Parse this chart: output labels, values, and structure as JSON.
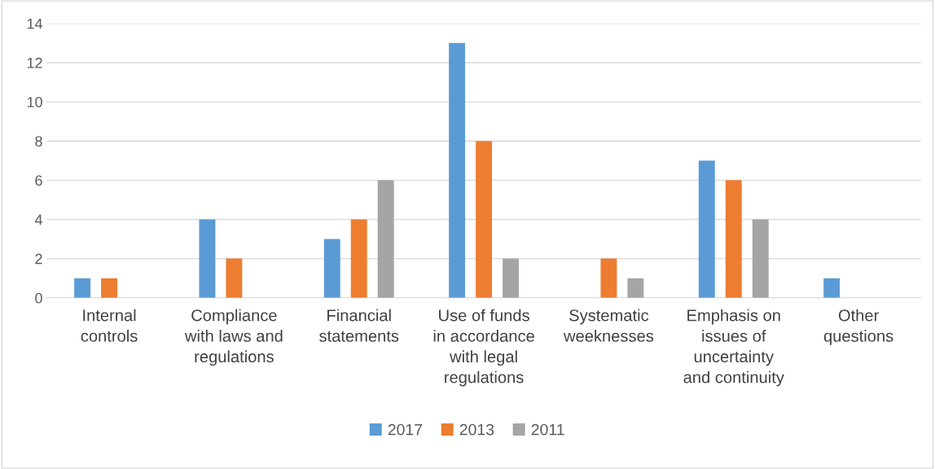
{
  "chart_data": {
    "type": "bar",
    "categories": [
      "Internal controls",
      "Compliance with laws and regulations",
      "Financial statements",
      "Use of funds in accordance with legal regulations",
      "Systematic weeknesses",
      "Emphasis on issues of uncertainty and continuity",
      "Other questions"
    ],
    "series": [
      {
        "name": "2017",
        "color": "#5b9bd5",
        "values": [
          1,
          4,
          3,
          13,
          0,
          7,
          1
        ]
      },
      {
        "name": "2013",
        "color": "#ed7d31",
        "values": [
          1,
          2,
          4,
          8,
          2,
          6,
          0
        ]
      },
      {
        "name": "2011",
        "color": "#a5a5a5",
        "values": [
          0,
          0,
          6,
          2,
          1,
          4,
          0
        ]
      }
    ],
    "ylim": [
      0,
      14
    ],
    "yticks": [
      0,
      2,
      4,
      6,
      8,
      10,
      12,
      14
    ],
    "grid": "y",
    "legend": "bottom"
  }
}
